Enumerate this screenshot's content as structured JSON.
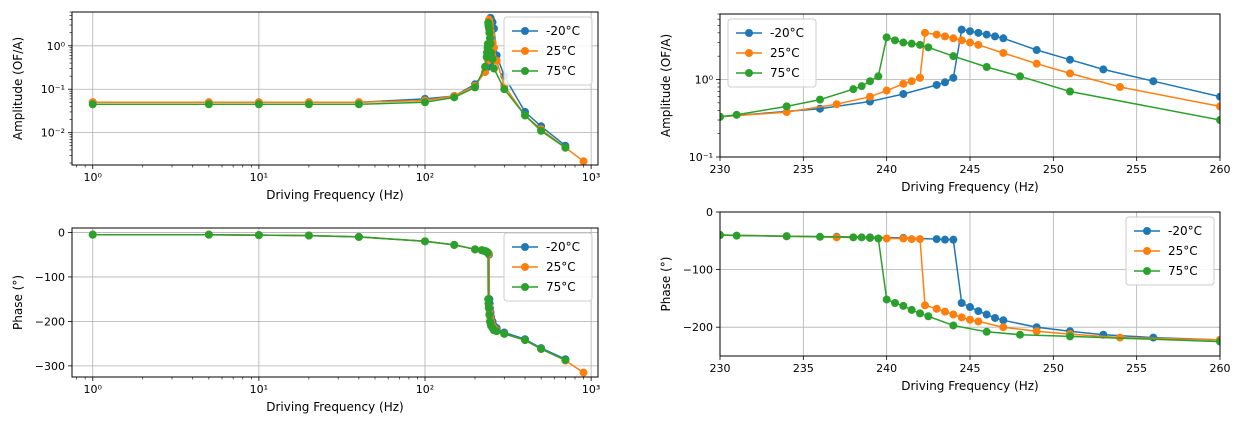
{
  "colors": {
    "-20°C": "#1f77b4",
    "25°C": "#ff7f0e",
    "75°C": "#2ca02c"
  },
  "chart_data": [
    {
      "type": "line",
      "xlabel": "Driving Frequency  (Hz)",
      "ylabel": "Amplitude (OF/A)",
      "xscale": "log",
      "yscale": "log",
      "xlim": [
        0.75,
        1100
      ],
      "ylim": [
        0.0018,
        6
      ],
      "xticks": [
        1,
        10,
        100,
        1000
      ],
      "xtick_labels": [
        "10⁰",
        "10¹",
        "10²",
        "10³"
      ],
      "yticks": [
        0.01,
        0.1,
        1
      ],
      "ytick_labels": [
        "10⁻²",
        "10⁻¹",
        "10⁰"
      ],
      "grid": true,
      "legend": "top-right",
      "series": [
        {
          "name": "-20°C",
          "x": [
            1,
            5,
            10,
            20,
            40,
            100,
            150,
            200,
            230,
            240,
            242,
            243,
            244,
            245,
            246,
            248,
            250,
            255,
            260,
            270,
            300,
            400,
            500,
            700
          ],
          "y": [
            0.05,
            0.05,
            0.05,
            0.05,
            0.05,
            0.06,
            0.07,
            0.13,
            0.25,
            0.33,
            0.4,
            0.5,
            0.6,
            0.8,
            1.05,
            4.4,
            4.0,
            3.5,
            2.5,
            0.6,
            0.2,
            0.03,
            0.014,
            0.005
          ]
        },
        {
          "name": "25°C",
          "x": [
            1,
            5,
            10,
            20,
            40,
            100,
            150,
            200,
            230,
            240,
            241,
            242,
            243,
            244,
            245,
            246,
            248,
            250,
            255,
            260,
            270,
            300,
            400,
            500,
            700,
            900
          ],
          "y": [
            0.05,
            0.05,
            0.05,
            0.05,
            0.05,
            0.055,
            0.07,
            0.12,
            0.25,
            0.45,
            0.7,
            1.0,
            4.0,
            3.6,
            3.2,
            2.8,
            2.2,
            1.8,
            1.2,
            0.9,
            0.45,
            0.12,
            0.025,
            0.012,
            0.0045,
            0.0022
          ]
        },
        {
          "name": "75°C",
          "x": [
            1,
            5,
            10,
            20,
            40,
            100,
            150,
            200,
            230,
            235,
            236,
            238,
            239,
            240,
            241,
            242,
            243,
            244,
            246,
            248,
            250,
            255,
            260,
            300,
            400,
            500,
            700
          ],
          "y": [
            0.045,
            0.045,
            0.045,
            0.045,
            0.045,
            0.05,
            0.065,
            0.11,
            0.33,
            0.55,
            0.7,
            0.9,
            1.1,
            3.4,
            3.0,
            2.8,
            2.5,
            2.0,
            1.5,
            1.1,
            0.7,
            0.5,
            0.3,
            0.1,
            0.025,
            0.011,
            0.0045
          ]
        }
      ]
    },
    {
      "type": "line",
      "xlabel": "Driving Frequency  (Hz)",
      "ylabel": "Amplitude (OF/A)",
      "xscale": "linear",
      "yscale": "log",
      "xlim": [
        230,
        260
      ],
      "ylim": [
        0.1,
        7
      ],
      "xticks": [
        230,
        235,
        240,
        245,
        250,
        255,
        260
      ],
      "xtick_labels": [
        "230",
        "235",
        "240",
        "245",
        "250",
        "255",
        "260"
      ],
      "yticks": [
        0.1,
        1
      ],
      "ytick_labels": [
        "10⁻¹",
        "10⁰"
      ],
      "grid": true,
      "legend": "top-left",
      "series": [
        {
          "name": "-20°C",
          "x": [
            230,
            236,
            239,
            241,
            243,
            243.5,
            244,
            244.5,
            245,
            245.5,
            246,
            246.5,
            247,
            249,
            251,
            253,
            256,
            260
          ],
          "y": [
            0.33,
            0.42,
            0.52,
            0.65,
            0.85,
            0.92,
            1.05,
            4.4,
            4.2,
            4.0,
            3.8,
            3.6,
            3.4,
            2.4,
            1.8,
            1.35,
            0.95,
            0.6
          ]
        },
        {
          "name": "25°C",
          "x": [
            230,
            234,
            237,
            239,
            240,
            241,
            241.5,
            242,
            242.3,
            243,
            243.5,
            244,
            244.5,
            245,
            245.5,
            247,
            249,
            251,
            254,
            260
          ],
          "y": [
            0.33,
            0.38,
            0.48,
            0.6,
            0.72,
            0.88,
            0.95,
            1.05,
            4.0,
            3.8,
            3.6,
            3.4,
            3.2,
            3.0,
            2.8,
            2.2,
            1.6,
            1.2,
            0.8,
            0.45
          ]
        },
        {
          "name": "75°C",
          "x": [
            230,
            231,
            234,
            236,
            238,
            238.5,
            239,
            239.5,
            240,
            240.5,
            241,
            241.5,
            242,
            242.5,
            244,
            246,
            248,
            251,
            260
          ],
          "y": [
            0.33,
            0.35,
            0.45,
            0.55,
            0.75,
            0.82,
            0.95,
            1.1,
            3.5,
            3.2,
            3.0,
            2.9,
            2.8,
            2.6,
            2.0,
            1.45,
            1.1,
            0.7,
            0.3
          ]
        }
      ]
    },
    {
      "type": "line",
      "xlabel": "Driving Frequency (Hz)",
      "ylabel": "Phase (°)",
      "xscale": "log",
      "yscale": "linear",
      "xlim": [
        0.75,
        1100
      ],
      "ylim": [
        -325,
        10
      ],
      "xticks": [
        1,
        10,
        100,
        1000
      ],
      "xtick_labels": [
        "10⁰",
        "10¹",
        "10²",
        "10³"
      ],
      "yticks": [
        -300,
        -200,
        -100,
        0
      ],
      "ytick_labels": [
        "−300",
        "−200",
        "−100",
        "0"
      ],
      "grid": true,
      "legend": "top-right",
      "series": [
        {
          "name": "-20°C",
          "x": [
            1,
            5,
            10,
            20,
            40,
            100,
            150,
            200,
            220,
            230,
            236,
            239,
            241,
            243,
            244,
            245,
            246,
            248,
            250,
            255,
            260,
            270,
            300,
            400,
            500,
            700
          ],
          "y": [
            -5,
            -5,
            -6,
            -7,
            -10,
            -20,
            -28,
            -38,
            -40,
            -42,
            -44,
            -46,
            -48,
            -50,
            -150,
            -160,
            -170,
            -180,
            -190,
            -200,
            -210,
            -215,
            -225,
            -240,
            -260,
            -285
          ]
        },
        {
          "name": "25°C",
          "x": [
            1,
            5,
            10,
            20,
            40,
            100,
            150,
            200,
            220,
            230,
            234,
            237,
            240,
            241,
            242,
            243,
            245,
            247,
            250,
            255,
            260,
            270,
            300,
            400,
            500,
            700,
            900
          ],
          "y": [
            -5,
            -5,
            -6,
            -7,
            -10,
            -20,
            -28,
            -38,
            -40,
            -42,
            -43,
            -45,
            -46,
            -47,
            -48,
            -165,
            -180,
            -190,
            -200,
            -210,
            -215,
            -220,
            -228,
            -242,
            -262,
            -288,
            -315
          ]
        },
        {
          "name": "75°C",
          "x": [
            1,
            5,
            10,
            20,
            40,
            100,
            150,
            200,
            220,
            230,
            234,
            236,
            238,
            239,
            240,
            241,
            242,
            244,
            246,
            248,
            250,
            255,
            260,
            270,
            300,
            400,
            500,
            700
          ],
          "y": [
            -5,
            -5,
            -6,
            -7,
            -10,
            -20,
            -28,
            -38,
            -40,
            -42,
            -43,
            -44,
            -45,
            -46,
            -150,
            -160,
            -170,
            -185,
            -200,
            -205,
            -210,
            -215,
            -220,
            -222,
            -228,
            -242,
            -262,
            -287
          ]
        }
      ]
    },
    {
      "type": "line",
      "xlabel": "Driving Frequency (Hz)",
      "ylabel": "Phase (°)",
      "xscale": "linear",
      "yscale": "linear",
      "xlim": [
        230,
        260
      ],
      "ylim": [
        -250,
        0
      ],
      "xticks": [
        230,
        235,
        240,
        245,
        250,
        255,
        260
      ],
      "xtick_labels": [
        "230",
        "235",
        "240",
        "245",
        "250",
        "255",
        "260"
      ],
      "yticks": [
        -200,
        -100,
        0
      ],
      "ytick_labels": [
        "−200",
        "−100",
        "0"
      ],
      "grid": true,
      "legend": "top-right",
      "series": [
        {
          "name": "-20°C",
          "x": [
            230,
            234,
            237,
            239,
            241,
            243,
            243.5,
            244,
            244.5,
            245,
            245.5,
            246,
            246.5,
            247,
            249,
            251,
            253,
            256,
            260
          ],
          "y": [
            -40,
            -42,
            -43,
            -44,
            -45,
            -47,
            -48,
            -48,
            -158,
            -165,
            -172,
            -178,
            -184,
            -188,
            -200,
            -207,
            -213,
            -218,
            -222
          ]
        },
        {
          "name": "25°C",
          "x": [
            230,
            234,
            237,
            239,
            240,
            241,
            241.5,
            242,
            242.3,
            243,
            243.5,
            244,
            244.5,
            245,
            245.5,
            247,
            249,
            251,
            254,
            260
          ],
          "y": [
            -40,
            -42,
            -44,
            -45,
            -46,
            -46,
            -47,
            -47,
            -162,
            -168,
            -173,
            -178,
            -183,
            -187,
            -190,
            -200,
            -207,
            -212,
            -218,
            -222
          ]
        },
        {
          "name": "75°C",
          "x": [
            230,
            231,
            234,
            236,
            238,
            238.5,
            239,
            239.5,
            240,
            240.5,
            241,
            241.5,
            242,
            242.5,
            244,
            246,
            248,
            251,
            260
          ],
          "y": [
            -40,
            -41,
            -42,
            -43,
            -44,
            -44,
            -45,
            -46,
            -152,
            -158,
            -163,
            -170,
            -176,
            -181,
            -197,
            -208,
            -213,
            -216,
            -225
          ]
        }
      ]
    }
  ]
}
